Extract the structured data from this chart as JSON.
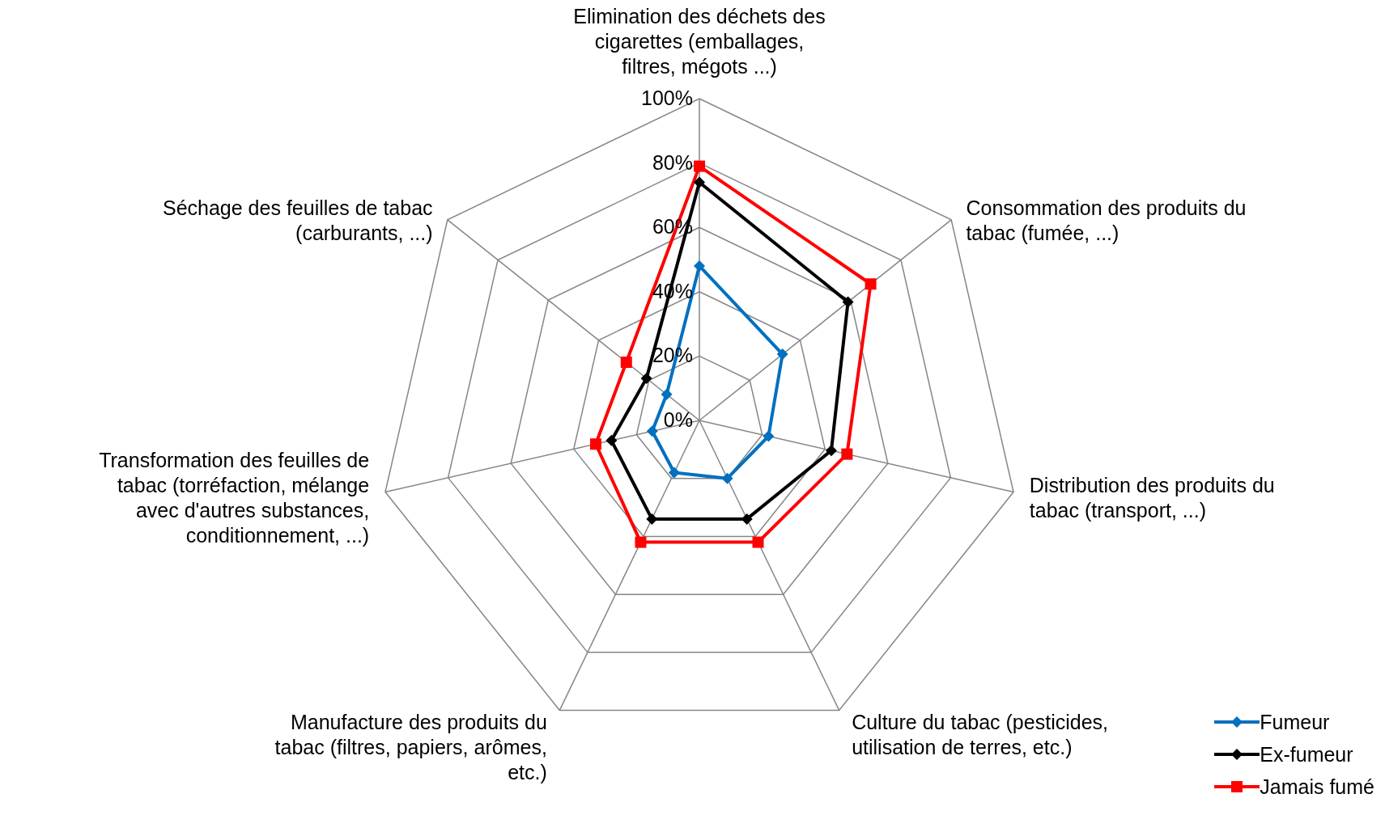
{
  "chart_data": {
    "type": "radar",
    "categories": [
      "Elimination des déchets des cigarettes (emballages, filtres, mégots ...)",
      "Consommation des produits du tabac (fumée, ...)",
      "Distribution des produits du tabac (transport, ...)",
      "Culture du tabac (pesticides, utilisation de terres, etc.)",
      "Manufacture des produits du tabac (filtres, papiers, arômes, etc.)",
      "Transformation des feuilles de tabac (torréfaction, mélange avec d'autres substances, conditionnement, ...)",
      "Séchage des feuilles de tabac (carburants, ...)"
    ],
    "series": [
      {
        "name": "Fumeur",
        "color": "#0070c0",
        "marker": "diamond",
        "values": [
          48,
          33,
          22,
          20,
          18,
          15,
          13
        ]
      },
      {
        "name": "Ex-fumeur",
        "color": "#000000",
        "marker": "diamond",
        "values": [
          74,
          59,
          42,
          34,
          34,
          28,
          21
        ]
      },
      {
        "name": "Jamais fumé",
        "color": "#ff0000",
        "marker": "square",
        "values": [
          79,
          68,
          47,
          42,
          42,
          33,
          29
        ]
      }
    ],
    "ylim": [
      0,
      100
    ],
    "yticks": [
      {
        "value": 0,
        "label": "0%"
      },
      {
        "value": 20,
        "label": "20%"
      },
      {
        "value": 40,
        "label": "40%"
      },
      {
        "value": 60,
        "label": "60%"
      },
      {
        "value": 80,
        "label": "80%"
      },
      {
        "value": 100,
        "label": "100%"
      }
    ],
    "grid": true,
    "legend": "bottom right"
  }
}
